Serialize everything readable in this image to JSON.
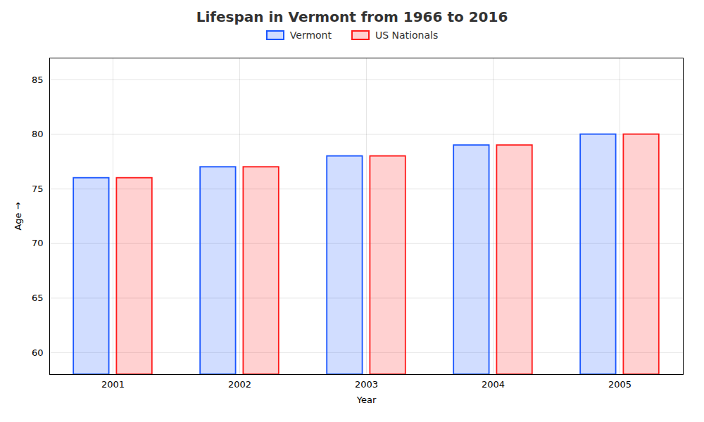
{
  "chart_data": {
    "type": "bar",
    "title": "Lifespan in Vermont from 1966 to 2016",
    "xlabel": "Year",
    "ylabel": "Age",
    "categories": [
      "2001",
      "2002",
      "2003",
      "2004",
      "2005"
    ],
    "series": [
      {
        "name": "Vermont",
        "color": "#1a56ff",
        "values": [
          76,
          77,
          78,
          79,
          80
        ]
      },
      {
        "name": "US Nationals",
        "color": "#ff1a1a",
        "values": [
          76,
          77,
          78,
          79,
          80
        ]
      }
    ],
    "ylim": [
      58,
      87
    ],
    "yticks": [
      60,
      65,
      70,
      75,
      80,
      85
    ],
    "grid": true,
    "legend": "top"
  }
}
